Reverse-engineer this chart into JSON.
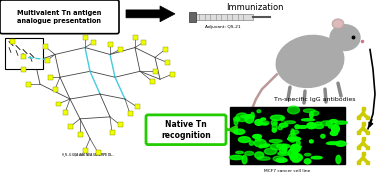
{
  "title_text": "Multivalent Tn antigen\nanalogue presentation",
  "immunization_text": "Immunization",
  "adjuvant_text": "Adjuvant: QS-21",
  "antibody_text": "Tn-specific IgG antibodies",
  "recognition_text": "Native Tn\nrecognition",
  "cancer_text": "MCF7 cancer cell line",
  "bg_color": "#ffffff",
  "yellow_color": "#eeff00",
  "cyan_color": "#44ccdd",
  "green_color": "#00ff00",
  "green_box_edge": "#22cc00",
  "gray_struct": "#444444",
  "antibody_color": "#cccc00",
  "mouse_color": "#aaaaaa",
  "mouse_ear_color": "#ddaaaa"
}
